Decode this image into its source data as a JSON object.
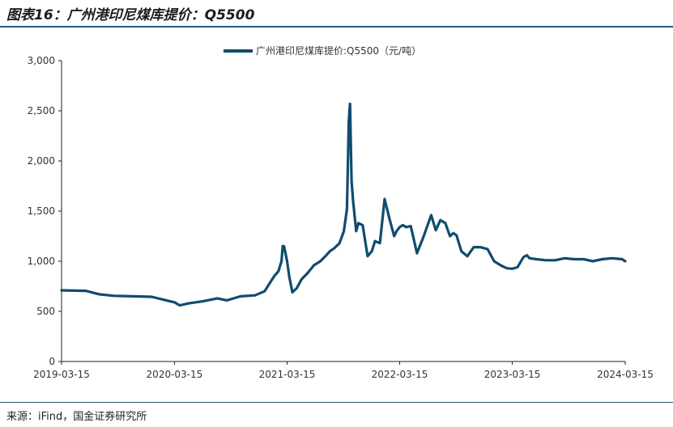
{
  "header": {
    "title": "图表16：广州港印尼煤库提价：Q5500"
  },
  "footer": {
    "source": "来源：iFind，国金证券研究所"
  },
  "colors": {
    "line": "#0f4c6e",
    "rule": "#1f5a83"
  },
  "chart_data": {
    "type": "line",
    "title": "",
    "xlabel": "",
    "ylabel": "",
    "ylim": [
      0,
      3000
    ],
    "y_ticks": [
      0,
      500,
      1000,
      1500,
      2000,
      2500,
      3000
    ],
    "y_tick_labels": [
      "0",
      "500",
      "1,000",
      "1,500",
      "2,000",
      "2,500",
      "3,000"
    ],
    "x_ticks": [
      "2019-03-15",
      "2020-03-15",
      "2021-03-15",
      "2022-03-15",
      "2023-03-15",
      "2024-03-15"
    ],
    "legend_position": "top-center",
    "grid": false,
    "series": [
      {
        "name": "广州港印尼煤库提价:Q5500（元/吨）",
        "x": [
          "2019-03-15",
          "2019-06-01",
          "2019-07-15",
          "2019-09-01",
          "2019-11-01",
          "2020-01-01",
          "2020-03-01",
          "2020-03-15",
          "2020-04-01",
          "2020-05-01",
          "2020-06-15",
          "2020-08-01",
          "2020-09-01",
          "2020-10-15",
          "2020-12-01",
          "2021-01-01",
          "2021-02-01",
          "2021-02-15",
          "2021-02-25",
          "2021-03-01",
          "2021-03-05",
          "2021-03-15",
          "2021-03-22",
          "2021-04-01",
          "2021-04-15",
          "2021-05-01",
          "2021-05-20",
          "2021-06-10",
          "2021-07-01",
          "2021-07-20",
          "2021-08-01",
          "2021-08-15",
          "2021-09-01",
          "2021-09-15",
          "2021-09-25",
          "2021-10-01",
          "2021-10-05",
          "2021-10-10",
          "2021-10-15",
          "2021-10-25",
          "2021-11-01",
          "2021-11-15",
          "2021-12-01",
          "2021-12-15",
          "2021-12-25",
          "2022-01-10",
          "2022-01-25",
          "2022-02-10",
          "2022-02-25",
          "2022-03-05",
          "2022-03-15",
          "2022-03-25",
          "2022-04-05",
          "2022-04-20",
          "2022-05-10",
          "2022-06-01",
          "2022-06-25",
          "2022-07-10",
          "2022-07-25",
          "2022-08-10",
          "2022-08-25",
          "2022-09-05",
          "2022-09-15",
          "2022-10-01",
          "2022-10-20",
          "2022-11-10",
          "2022-12-01",
          "2022-12-25",
          "2023-01-15",
          "2023-02-05",
          "2023-02-25",
          "2023-03-15",
          "2023-04-01",
          "2023-04-20",
          "2023-05-01",
          "2023-05-10",
          "2023-06-01",
          "2023-07-01",
          "2023-08-01",
          "2023-09-01",
          "2023-10-01",
          "2023-11-01",
          "2023-12-01",
          "2024-01-01",
          "2024-02-01",
          "2024-03-05",
          "2024-03-15"
        ],
        "values": [
          710,
          705,
          670,
          655,
          650,
          645,
          600,
          590,
          560,
          580,
          600,
          630,
          610,
          650,
          660,
          700,
          850,
          900,
          1000,
          1150,
          1150,
          1000,
          850,
          690,
          730,
          820,
          880,
          960,
          1000,
          1060,
          1100,
          1130,
          1180,
          1300,
          1520,
          2400,
          2570,
          1800,
          1600,
          1300,
          1380,
          1360,
          1050,
          1100,
          1200,
          1180,
          1620,
          1420,
          1250,
          1300,
          1340,
          1360,
          1340,
          1350,
          1080,
          1250,
          1460,
          1310,
          1410,
          1380,
          1250,
          1280,
          1260,
          1100,
          1050,
          1140,
          1140,
          1120,
          1000,
          960,
          930,
          925,
          940,
          1040,
          1060,
          1030,
          1020,
          1010,
          1010,
          1030,
          1020,
          1020,
          1000,
          1020,
          1030,
          1020,
          1000
        ]
      }
    ]
  }
}
